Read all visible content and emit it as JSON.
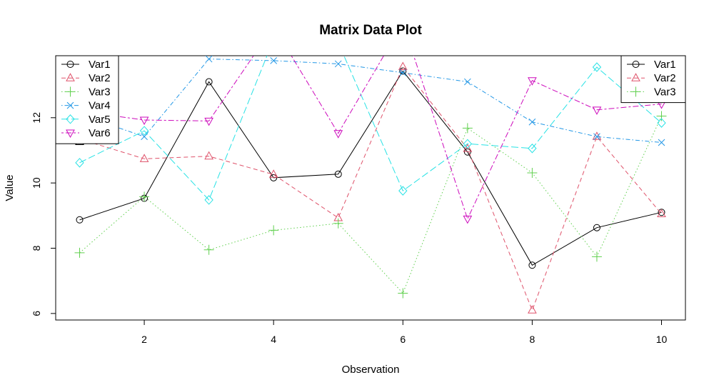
{
  "chart_data": {
    "type": "line",
    "title": "Matrix Data Plot",
    "xlabel": "Observation",
    "ylabel": "Value",
    "x": [
      1,
      2,
      3,
      4,
      5,
      6,
      7,
      8,
      9,
      10
    ],
    "xlim": [
      0.63,
      10.37
    ],
    "ylim": [
      5.8,
      13.9
    ],
    "xticks": [
      2,
      4,
      6,
      8,
      10
    ],
    "yticks": [
      6,
      8,
      10,
      12
    ],
    "series": [
      {
        "name": "Var1",
        "color": "#000000",
        "dash": "solid",
        "marker": "circle",
        "values": [
          8.87,
          9.53,
          13.1,
          10.16,
          10.27,
          13.43,
          10.95,
          7.48,
          8.63,
          9.1
        ]
      },
      {
        "name": "Var2",
        "color": "#DF536B",
        "dash": "dashed",
        "marker": "triangle",
        "values": [
          11.35,
          10.74,
          10.82,
          10.26,
          8.93,
          13.56,
          11.05,
          6.1,
          11.42,
          9.05
        ]
      },
      {
        "name": "Var3",
        "color": "#61D04F",
        "dash": "dotted",
        "marker": "plus",
        "values": [
          7.86,
          9.58,
          7.95,
          8.55,
          8.76,
          6.62,
          11.68,
          10.31,
          7.74,
          12.05
        ]
      },
      {
        "name": "Var4",
        "color": "#2297E6",
        "dash": "dotdash",
        "marker": "cross",
        "values": [
          12.1,
          11.42,
          13.8,
          13.75,
          13.65,
          13.38,
          13.1,
          11.87,
          11.42,
          11.24
        ]
      },
      {
        "name": "Var5",
        "color": "#28E2E5",
        "dash": "longdash",
        "marker": "diamond",
        "values": [
          10.62,
          11.6,
          9.48,
          14.4,
          14.3,
          9.76,
          11.2,
          11.06,
          13.55,
          11.84
        ]
      },
      {
        "name": "Var6",
        "color": "#CD0BBC",
        "dash": "twodash",
        "marker": "triangle-down",
        "values": [
          12.2,
          11.93,
          11.9,
          14.8,
          11.52,
          14.9,
          8.9,
          13.14,
          12.24,
          12.42
        ]
      }
    ],
    "legends": [
      {
        "position": "top-left",
        "entries": [
          {
            "label": "Var1",
            "series": 0
          },
          {
            "label": "Var2",
            "series": 1
          },
          {
            "label": "Var3",
            "series": 2
          },
          {
            "label": "Var4",
            "series": 3
          },
          {
            "label": "Var5",
            "series": 4
          },
          {
            "label": "Var6",
            "series": 5
          }
        ]
      },
      {
        "position": "top-right",
        "entries": [
          {
            "label": "Var1",
            "series": 0
          },
          {
            "label": "Var2",
            "series": 1
          },
          {
            "label": "Var3",
            "series": 2
          }
        ]
      }
    ],
    "stray_marker": {
      "symbol": "triangle",
      "color": "#000000",
      "x": 1.0,
      "y": 11.35
    },
    "grid": false
  }
}
